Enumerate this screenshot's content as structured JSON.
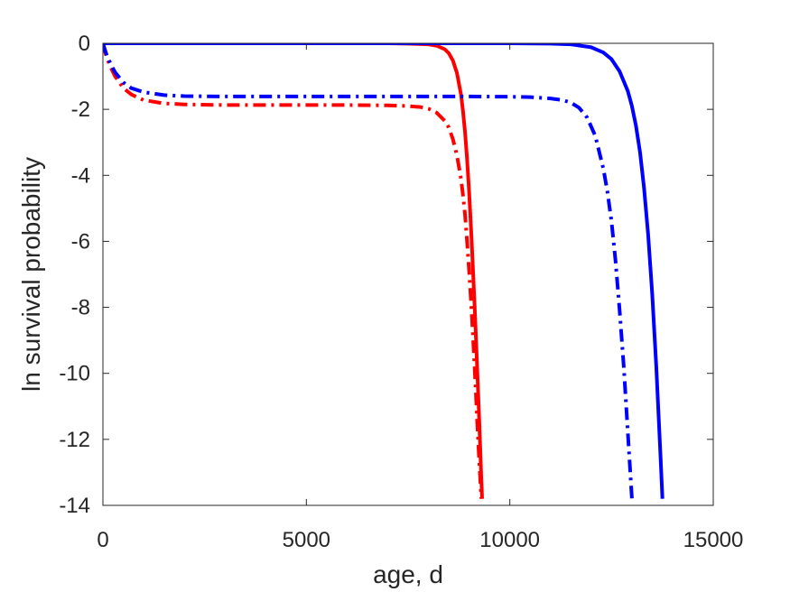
{
  "chart_data": {
    "type": "line",
    "title": "",
    "xlabel": "age, d",
    "ylabel": "ln survival probability",
    "xlim": [
      0,
      15000
    ],
    "ylim": [
      -14,
      0
    ],
    "xticks": [
      0,
      5000,
      10000,
      15000
    ],
    "yticks": [
      0,
      -2,
      -4,
      -6,
      -8,
      -10,
      -12,
      -14
    ],
    "xtick_labels": [
      "0",
      "5000",
      "10000",
      "15000"
    ],
    "ytick_labels": [
      "0",
      "-2",
      "-4",
      "-6",
      "-8",
      "-10",
      "-12",
      "-14"
    ],
    "grid": false,
    "series": [
      {
        "color": "#ff0000",
        "style": "solid",
        "x": [
          0,
          2000,
          4000,
          6000,
          7000,
          7500,
          8000,
          8200,
          8400,
          8500,
          8600,
          8700,
          8800,
          8850,
          8900,
          8950,
          9000,
          9050,
          9100,
          9150,
          9200,
          9250,
          9300,
          9320
        ],
        "y": [
          0,
          0,
          0,
          0,
          0,
          -0.01,
          -0.03,
          -0.07,
          -0.18,
          -0.3,
          -0.52,
          -0.9,
          -1.55,
          -2.05,
          -2.7,
          -3.5,
          -4.5,
          -5.7,
          -7.0,
          -8.4,
          -9.9,
          -11.5,
          -13.2,
          -13.8
        ]
      },
      {
        "color": "#ff0000",
        "style": "dashdot",
        "x": [
          0,
          50,
          100,
          200,
          300,
          500,
          700,
          1000,
          1500,
          2000,
          3000,
          4000,
          5000,
          6000,
          7000,
          7500,
          7800,
          8000,
          8200,
          8400,
          8500,
          8600,
          8700,
          8800,
          8850,
          8900,
          8950,
          9000,
          9050,
          9100,
          9150,
          9200,
          9250,
          9300
        ],
        "y": [
          0,
          -0.25,
          -0.45,
          -0.75,
          -1.0,
          -1.35,
          -1.55,
          -1.72,
          -1.82,
          -1.85,
          -1.87,
          -1.87,
          -1.87,
          -1.87,
          -1.88,
          -1.9,
          -1.93,
          -1.98,
          -2.1,
          -2.35,
          -2.55,
          -2.9,
          -3.4,
          -4.1,
          -4.6,
          -5.2,
          -6.0,
          -6.9,
          -7.9,
          -9.0,
          -10.2,
          -11.5,
          -12.7,
          -13.8
        ]
      },
      {
        "color": "#0000ff",
        "style": "solid",
        "x": [
          0,
          4000,
          8000,
          10000,
          11000,
          11500,
          12000,
          12300,
          12500,
          12700,
          12900,
          13000,
          13100,
          13200,
          13300,
          13400,
          13500,
          13600,
          13700,
          13750
        ],
        "y": [
          0,
          0,
          0,
          0,
          -0.01,
          -0.03,
          -0.12,
          -0.28,
          -0.48,
          -0.85,
          -1.45,
          -1.9,
          -2.5,
          -3.3,
          -4.4,
          -5.8,
          -7.6,
          -9.8,
          -12.4,
          -13.8
        ]
      },
      {
        "color": "#0000ff",
        "style": "dashdot",
        "x": [
          0,
          50,
          100,
          200,
          300,
          500,
          700,
          1000,
          1500,
          2000,
          3000,
          5000,
          7000,
          9000,
          10000,
          10500,
          11000,
          11300,
          11500,
          11700,
          11900,
          12100,
          12300,
          12400,
          12500,
          12600,
          12700,
          12800,
          12900,
          13000
        ],
        "y": [
          0,
          -0.2,
          -0.38,
          -0.65,
          -0.88,
          -1.18,
          -1.36,
          -1.48,
          -1.57,
          -1.6,
          -1.61,
          -1.61,
          -1.61,
          -1.61,
          -1.62,
          -1.63,
          -1.67,
          -1.72,
          -1.8,
          -1.95,
          -2.25,
          -2.8,
          -3.8,
          -4.5,
          -5.4,
          -6.6,
          -8.1,
          -9.8,
          -11.8,
          -13.8
        ]
      }
    ]
  }
}
